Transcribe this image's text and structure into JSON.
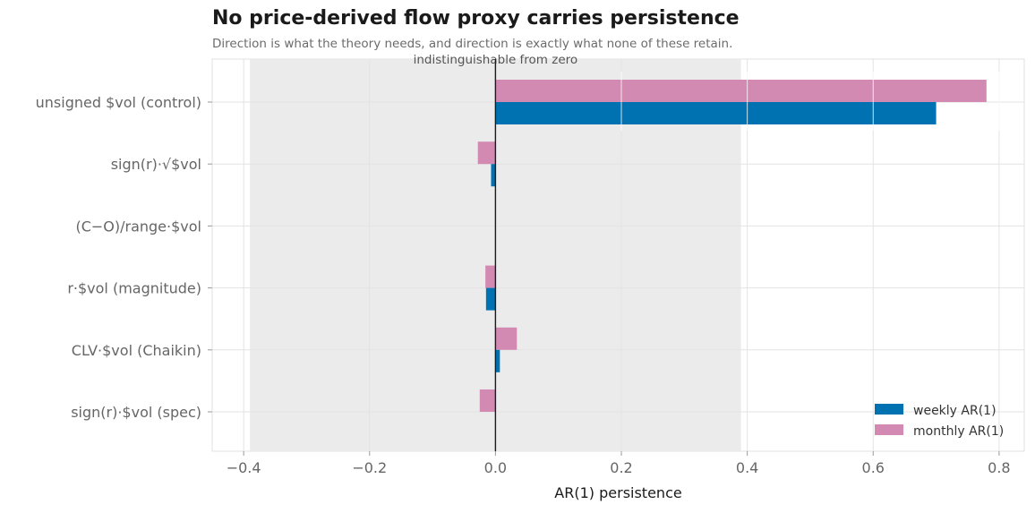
{
  "chart_data": {
    "type": "bar",
    "orientation": "horizontal",
    "title": "No price-derived flow proxy carries persistence",
    "subtitle": "Direction is what the theory needs, and direction is exactly what none of these retain.",
    "xlabel": "AR(1) persistence",
    "ylabel": "",
    "xlim": [
      -0.45,
      0.84
    ],
    "xticks": [
      -0.4,
      -0.2,
      0.0,
      0.2,
      0.4,
      0.6,
      0.8
    ],
    "xtick_labels": [
      "−0.4",
      "−0.2",
      "0.0",
      "0.2",
      "0.4",
      "0.6",
      "0.8"
    ],
    "grid": true,
    "categories": [
      "unsigned $vol  (control)",
      "sign(r)·√$vol",
      "(C−O)/range·$vol",
      "r·$vol  (magnitude)",
      "CLV·$vol  (Chaikin)",
      "sign(r)·$vol  (spec)"
    ],
    "series": [
      {
        "name": "weekly AR(1)",
        "color": "#0072b2",
        "values": [
          0.7,
          -0.007,
          0.0,
          -0.015,
          0.007,
          0.0
        ]
      },
      {
        "name": "monthly AR(1)",
        "color": "#d28ab2",
        "values": [
          0.78,
          -0.028,
          0.0,
          -0.016,
          0.034,
          -0.025
        ]
      }
    ],
    "shaded_band": {
      "x0": -0.39,
      "x1": 0.39,
      "label": "indistinguishable from zero",
      "color": "#ebebeb"
    },
    "reference_line": {
      "x": 0.0,
      "color": "#1a1a1a"
    },
    "legend": {
      "position": "bottom-right"
    }
  }
}
